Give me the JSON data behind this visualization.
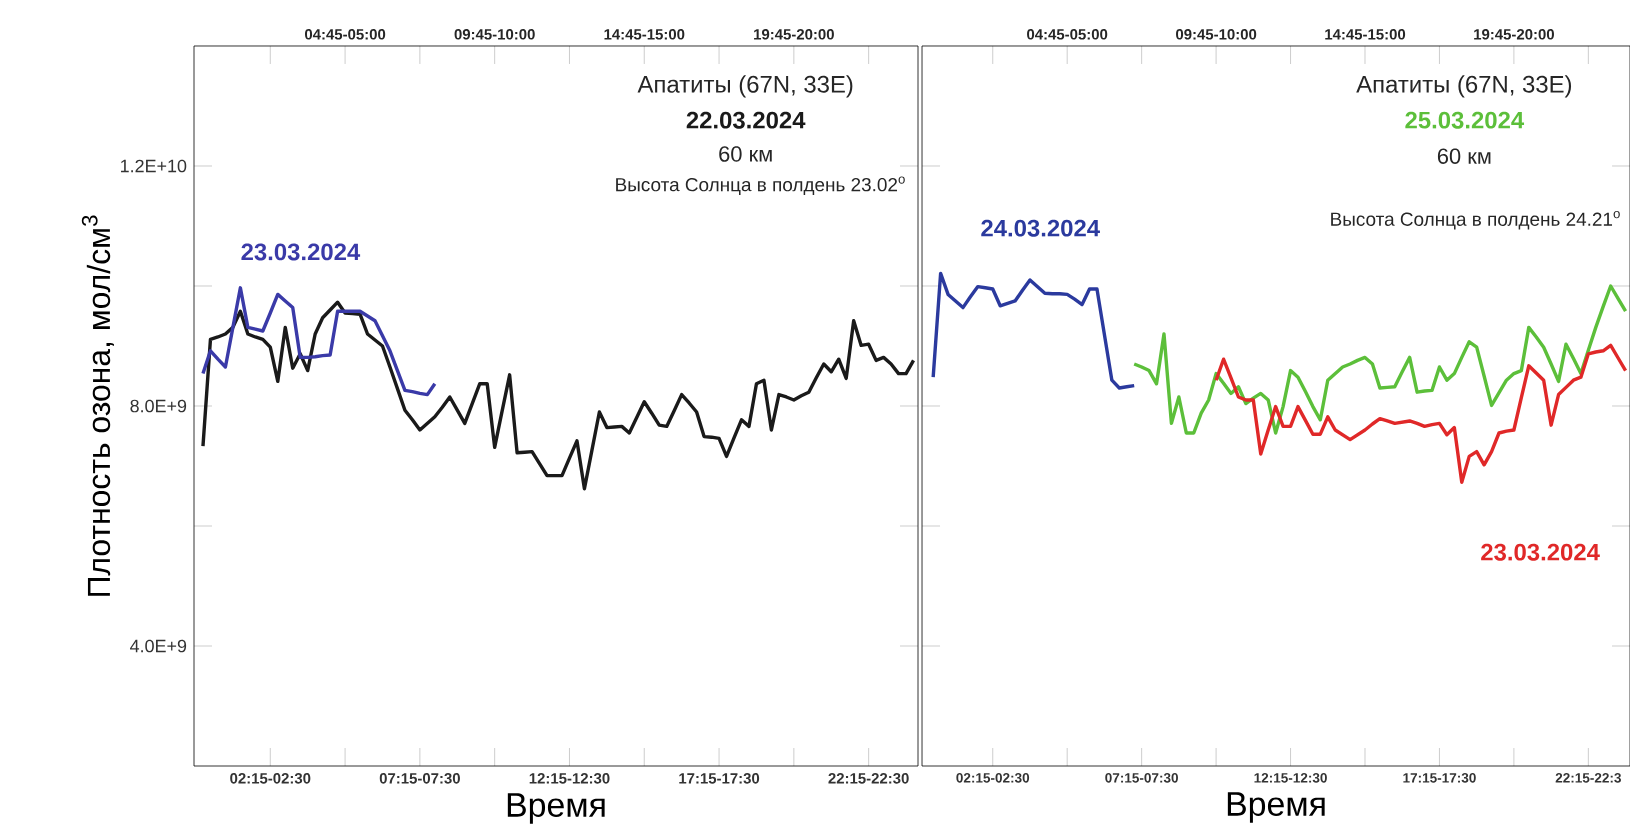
{
  "chart_data": [
    {
      "type": "line",
      "xlabel": "Время",
      "ylabel": "Плотность озона, мол/см$^{3}$",
      "annotations": [
        "Апатиты (67N, 33E)",
        "60 км",
        "Высота Солнца в полдень 23.02$^{o}$",
        "04:45-05:00",
        "09:45-10:00",
        "14:45-15:00",
        "19:45-20:00"
      ],
      "categories": [
        null,
        null,
        null,
        null,
        null,
        null,
        null,
        null,
        null,
        "02:15-02:30",
        null,
        null,
        null,
        null,
        null,
        null,
        null,
        null,
        null,
        null,
        null,
        null,
        null,
        null,
        null,
        null,
        null,
        null,
        null,
        "07:15-07:30",
        null,
        null,
        null,
        null,
        null,
        null,
        null,
        null,
        null,
        null,
        null,
        null,
        null,
        null,
        null,
        null,
        null,
        null,
        null,
        "12:15-12:30",
        null,
        null,
        null,
        null,
        null,
        null,
        null,
        null,
        null,
        null,
        null,
        null,
        null,
        null,
        null,
        null,
        null,
        null,
        null,
        "17:15-17:30",
        null,
        null,
        null,
        null,
        null,
        null,
        null,
        null,
        null,
        null,
        null,
        null,
        null,
        null,
        null,
        null,
        null,
        null,
        null,
        "22:15-22:30",
        null,
        null,
        null,
        null,
        null,
        null
      ],
      "ylim": [
        2000000000.0,
        14000000000.0
      ],
      "yticks": [
        {
          "value": 4000000000.0,
          "label": "4.0E+9"
        },
        {
          "value": 6000000000.0,
          "label": null
        },
        {
          "value": 8000000000.0,
          "label": "8.0E+9"
        },
        {
          "value": 10000000000.0,
          "label": null
        },
        {
          "value": 12000000000.0,
          "label": "1.2E+10"
        }
      ],
      "series": [
        {
          "name": "22.03.2024",
          "color": "#1a1a1a",
          "values": [
            7330000000.0,
            9110000000.0,
            9150000000.0,
            9200000000.0,
            9310000000.0,
            9580000000.0,
            9200000000.0,
            9150000000.0,
            9110000000.0,
            8980000000.0,
            8410000000.0,
            9310000000.0,
            8630000000.0,
            8870000000.0,
            8590000000.0,
            9200000000.0,
            9470000000.0,
            9600000000.0,
            9730000000.0,
            9550000000.0,
            9540000000.0,
            9530000000.0,
            9200000000.0,
            9100000000.0,
            9000000000.0,
            8650000000.0,
            8290000000.0,
            7930000000.0,
            7770000000.0,
            7600000000.0,
            7710000000.0,
            7820000000.0,
            7980000000.0,
            8150000000.0,
            7930000000.0,
            7710000000.0,
            8040000000.0,
            8370000000.0,
            8370000000.0,
            7310000000.0,
            7920000000.0,
            8520000000.0,
            7220000000.0,
            7230000000.0,
            7240000000.0,
            7040000000.0,
            6840000000.0,
            6840000000.0,
            6840000000.0,
            7130000000.0,
            7420000000.0,
            6620000000.0,
            7260000000.0,
            7900000000.0,
            7640000000.0,
            7650000000.0,
            7660000000.0,
            7550000000.0,
            7810000000.0,
            8070000000.0,
            7880000000.0,
            7680000000.0,
            7660000000.0,
            7920000000.0,
            8190000000.0,
            8050000000.0,
            7900000000.0,
            7490000000.0,
            7480000000.0,
            7460000000.0,
            7160000000.0,
            7470000000.0,
            7770000000.0,
            7660000000.0,
            8370000000.0,
            8430000000.0,
            7600000000.0,
            8190000000.0,
            8150000000.0,
            8100000000.0,
            8170000000.0,
            8230000000.0,
            8470000000.0,
            8700000000.0,
            8570000000.0,
            8780000000.0,
            8460000000.0,
            9420000000.0,
            9010000000.0,
            9030000000.0,
            8760000000.0,
            8810000000.0,
            8700000000.0,
            8540000000.0,
            8540000000.0,
            8760000000.0
          ]
        },
        {
          "name": "23.03.2024",
          "color": "#3a3aa8",
          "values": [
            8540000000.0,
            8920000000.0,
            8780000000.0,
            8650000000.0,
            9310000000.0,
            9970000000.0,
            9310000000.0,
            9280000000.0,
            9250000000.0,
            9550000000.0,
            9860000000.0,
            9750000000.0,
            9640000000.0,
            8810000000.0,
            8810000000.0,
            8820000000.0,
            8840000000.0,
            8850000000.0,
            9580000000.0,
            9580000000.0,
            9580000000.0,
            9580000000.0,
            9500000000.0,
            9420000000.0,
            9170000000.0,
            8920000000.0,
            8590000000.0,
            8260000000.0,
            8240000000.0,
            8210000000.0,
            8190000000.0,
            8370000000.0,
            null,
            null,
            null,
            null,
            null,
            null,
            null,
            null,
            null,
            null,
            null,
            null,
            null,
            null,
            null,
            null,
            null,
            null,
            null,
            null,
            null,
            null,
            null,
            null,
            null,
            null,
            null,
            null,
            null,
            null,
            null,
            null,
            null,
            null,
            null,
            null,
            null,
            null,
            null,
            null,
            null,
            null,
            null,
            null,
            null,
            null,
            null,
            null,
            null,
            null,
            null,
            null,
            null,
            null,
            null,
            null,
            null,
            null,
            null,
            null,
            null,
            null,
            null,
            null
          ]
        }
      ]
    },
    {
      "type": "line",
      "xlabel": "Время",
      "annotations": [
        "Апатиты (67N, 33E)",
        "60 км",
        "Высота Солнца в полдень 24.21$^{o}$",
        "04:45-05:00",
        "09:45-10:00",
        "14:45-15:00",
        "19:45-20:00"
      ],
      "tick_labels": "x",
      "categories": [
        null,
        null,
        null,
        null,
        null,
        null,
        null,
        null,
        null,
        "02:15-02:30",
        null,
        null,
        null,
        null,
        null,
        null,
        null,
        null,
        null,
        null,
        null,
        null,
        null,
        null,
        null,
        null,
        null,
        null,
        null,
        "07:15-07:30",
        null,
        null,
        null,
        null,
        null,
        null,
        null,
        null,
        null,
        null,
        null,
        null,
        null,
        null,
        null,
        null,
        null,
        null,
        null,
        "12:15-12:30",
        null,
        null,
        null,
        null,
        null,
        null,
        null,
        null,
        null,
        null,
        null,
        null,
        null,
        null,
        null,
        null,
        null,
        null,
        null,
        "17:15-17:30",
        null,
        null,
        null,
        null,
        null,
        null,
        null,
        null,
        null,
        null,
        null,
        null,
        null,
        null,
        null,
        null,
        null,
        null,
        null,
        "22:15-22:3",
        null,
        null,
        null,
        null,
        null
      ],
      "ylim": [
        2000000000.0,
        14000000000.0
      ],
      "yticks": [
        4000000000.0,
        6000000000.0,
        8000000000.0,
        10000000000.0,
        12000000000.0
      ],
      "series": [
        {
          "name": "24.03.2024",
          "color": "#2b3a9e",
          "values": [
            null,
            8480000000.0,
            10210000000.0,
            9860000000.0,
            9750000000.0,
            9640000000.0,
            9820000000.0,
            9990000000.0,
            9970000000.0,
            9950000000.0,
            9670000000.0,
            9710000000.0,
            9750000000.0,
            9930000000.0,
            10100000000.0,
            9990000000.0,
            9880000000.0,
            9870000000.0,
            9870000000.0,
            9860000000.0,
            9780000000.0,
            9690000000.0,
            9950000000.0,
            9950000000.0,
            9190000000.0,
            8430000000.0,
            8300000000.0,
            8320000000.0,
            8340000000.0,
            null,
            null,
            null,
            null,
            null,
            null,
            null,
            null,
            null,
            null,
            null,
            null,
            null,
            null,
            null,
            null,
            null,
            null,
            null,
            null,
            null,
            null,
            null,
            null,
            null,
            null,
            null,
            null,
            null,
            null,
            null,
            null,
            null,
            null,
            null,
            null,
            null,
            null,
            null,
            null,
            null,
            null,
            null,
            null,
            null,
            null,
            null,
            null,
            null,
            null,
            null,
            null,
            null,
            null,
            null,
            null,
            null,
            null,
            null,
            null,
            null,
            null,
            null,
            null,
            null,
            null
          ]
        },
        {
          "name": "25.03.2024",
          "color": "#5cbf3a",
          "values": [
            null,
            null,
            null,
            null,
            null,
            null,
            null,
            null,
            null,
            null,
            null,
            null,
            null,
            null,
            null,
            null,
            null,
            null,
            null,
            null,
            null,
            null,
            null,
            null,
            null,
            null,
            null,
            null,
            8700000000.0,
            8650000000.0,
            8590000000.0,
            8370000000.0,
            9200000000.0,
            7710000000.0,
            8150000000.0,
            7550000000.0,
            7550000000.0,
            7880000000.0,
            8100000000.0,
            8540000000.0,
            8380000000.0,
            8210000000.0,
            8320000000.0,
            8040000000.0,
            8130000000.0,
            8210000000.0,
            8100000000.0,
            7550000000.0,
            7990000000.0,
            8590000000.0,
            8480000000.0,
            8240000000.0,
            7990000000.0,
            7770000000.0,
            8430000000.0,
            8540000000.0,
            8650000000.0,
            8700000000.0,
            8760000000.0,
            8810000000.0,
            8700000000.0,
            8300000000.0,
            8310000000.0,
            8320000000.0,
            8570000000.0,
            8810000000.0,
            8230000000.0,
            8250000000.0,
            8260000000.0,
            8650000000.0,
            8430000000.0,
            8540000000.0,
            8810000000.0,
            9070000000.0,
            8980000000.0,
            8500000000.0,
            8010000000.0,
            8220000000.0,
            8430000000.0,
            8540000000.0,
            8590000000.0,
            9310000000.0,
            9150000000.0,
            8980000000.0,
            8700000000.0,
            8410000000.0,
            9030000000.0,
            8790000000.0,
            8540000000.0,
            8930000000.0,
            9310000000.0,
            9660000000.0,
            10000000000.0,
            9790000000.0,
            9580000000.0
          ]
        },
        {
          "name": "23.03.2024",
          "color": "#e02828",
          "values": [
            null,
            null,
            null,
            null,
            null,
            null,
            null,
            null,
            null,
            null,
            null,
            null,
            null,
            null,
            null,
            null,
            null,
            null,
            null,
            null,
            null,
            null,
            null,
            null,
            null,
            null,
            null,
            null,
            null,
            null,
            null,
            null,
            null,
            null,
            null,
            null,
            null,
            null,
            null,
            8430000000.0,
            8780000000.0,
            8470000000.0,
            8150000000.0,
            8100000000.0,
            8100000000.0,
            7200000000.0,
            7600000000.0,
            7990000000.0,
            7660000000.0,
            7660000000.0,
            7990000000.0,
            7760000000.0,
            7530000000.0,
            7530000000.0,
            7820000000.0,
            7600000000.0,
            7520000000.0,
            7440000000.0,
            7520000000.0,
            7600000000.0,
            7700000000.0,
            7790000000.0,
            7750000000.0,
            7710000000.0,
            7730000000.0,
            7750000000.0,
            7710000000.0,
            7660000000.0,
            7690000000.0,
            7710000000.0,
            7520000000.0,
            7640000000.0,
            6730000000.0,
            7160000000.0,
            7240000000.0,
            7020000000.0,
            7240000000.0,
            7550000000.0,
            7580000000.0,
            7600000000.0,
            8140000000.0,
            8670000000.0,
            8550000000.0,
            8430000000.0,
            7680000000.0,
            8190000000.0,
            8310000000.0,
            8430000000.0,
            8480000000.0,
            8870000000.0,
            8900000000.0,
            8920000000.0,
            9010000000.0,
            8800000000.0,
            8590000000.0
          ]
        }
      ]
    }
  ]
}
